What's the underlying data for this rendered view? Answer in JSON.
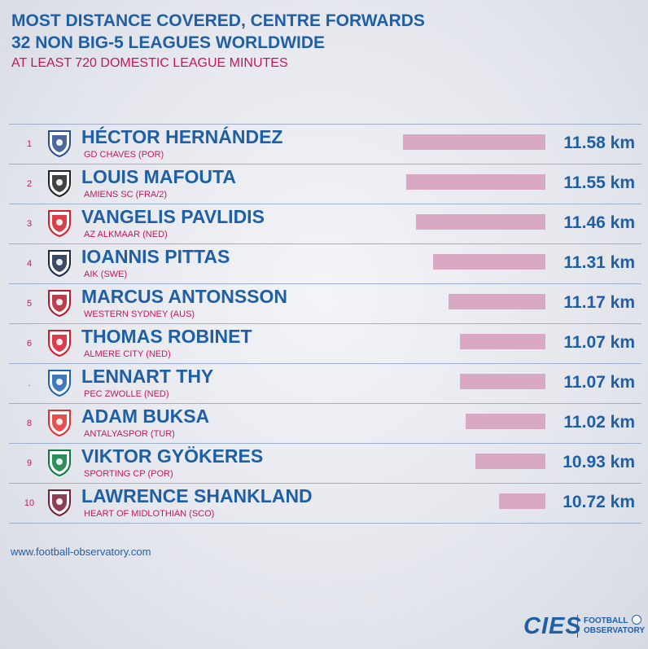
{
  "header": {
    "title_line1": "MOST DISTANCE COVERED, CENTRE FORWARDS",
    "title_line2": "32 NON BIG-5 LEAGUES WORLDWIDE",
    "subtitle": "AT LEAST 720 DOMESTIC LEAGUE MINUTES"
  },
  "footer": {
    "source": "www.football-observatory.com",
    "brand_mark": "CIES",
    "brand_text_line1": "FOOTBALL",
    "brand_text_line2": "OBSERVATORY"
  },
  "colors": {
    "title": "#1f5fa6",
    "accent": "#c2185b",
    "bar": "#d9a8c3"
  },
  "chart_data": {
    "type": "bar",
    "orientation": "horizontal",
    "unit": "km",
    "xlim": [
      10.3,
      11.58
    ],
    "rows": [
      {
        "rank": "1",
        "player": "HÉCTOR HERNÁNDEZ",
        "club": "GD CHAVES (POR)",
        "value": 11.58,
        "label": "11.58 km",
        "logo": "gd-chaves-crest-icon",
        "logo_color": "#2b4f8c"
      },
      {
        "rank": "2",
        "player": "LOUIS MAFOUTA",
        "club": "AMIENS SC (FRA/2)",
        "value": 11.55,
        "label": "11.55 km",
        "logo": "amiens-sc-crest-icon",
        "logo_color": "#222222"
      },
      {
        "rank": "3",
        "player": "VANGELIS PAVLIDIS",
        "club": "AZ ALKMAAR (NED)",
        "value": 11.46,
        "label": "11.46 km",
        "logo": "az-alkmaar-crest-icon",
        "logo_color": "#d2202a"
      },
      {
        "rank": "4",
        "player": "IOANNIS PITTAS",
        "club": "AIK (SWE)",
        "value": 11.31,
        "label": "11.31 km",
        "logo": "aik-crest-icon",
        "logo_color": "#1a2a4a"
      },
      {
        "rank": "5",
        "player": "MARCUS ANTONSSON",
        "club": "WESTERN SYDNEY (AUS)",
        "value": 11.17,
        "label": "11.17 km",
        "logo": "western-sydney-crest-icon",
        "logo_color": "#b01c2e"
      },
      {
        "rank": "6",
        "player": "THOMAS ROBINET",
        "club": "ALMERE CITY (NED)",
        "value": 11.07,
        "label": "11.07 km",
        "logo": "almere-city-crest-icon",
        "logo_color": "#d7192b"
      },
      {
        "rank": ".",
        "player": "LENNART THY",
        "club": "PEC ZWOLLE (NED)",
        "value": 11.07,
        "label": "11.07 km",
        "logo": "pec-zwolle-crest-icon",
        "logo_color": "#1d64b0"
      },
      {
        "rank": "8",
        "player": "ADAM BUKSA",
        "club": "ANTALYASPOR (TUR)",
        "value": 11.02,
        "label": "11.02 km",
        "logo": "antalyaspor-crest-icon",
        "logo_color": "#e2302f"
      },
      {
        "rank": "9",
        "player": "VIKTOR GYÖKERES",
        "club": "SPORTING CP (POR)",
        "value": 10.93,
        "label": "10.93 km",
        "logo": "sporting-cp-crest-icon",
        "logo_color": "#0b7a3e"
      },
      {
        "rank": "10",
        "player": "LAWRENCE SHANKLAND",
        "club": "HEART OF MIDLOTHIAN (SCO)",
        "value": 10.72,
        "label": "10.72 km",
        "logo": "hearts-crest-icon",
        "logo_color": "#7a1e34"
      }
    ]
  }
}
